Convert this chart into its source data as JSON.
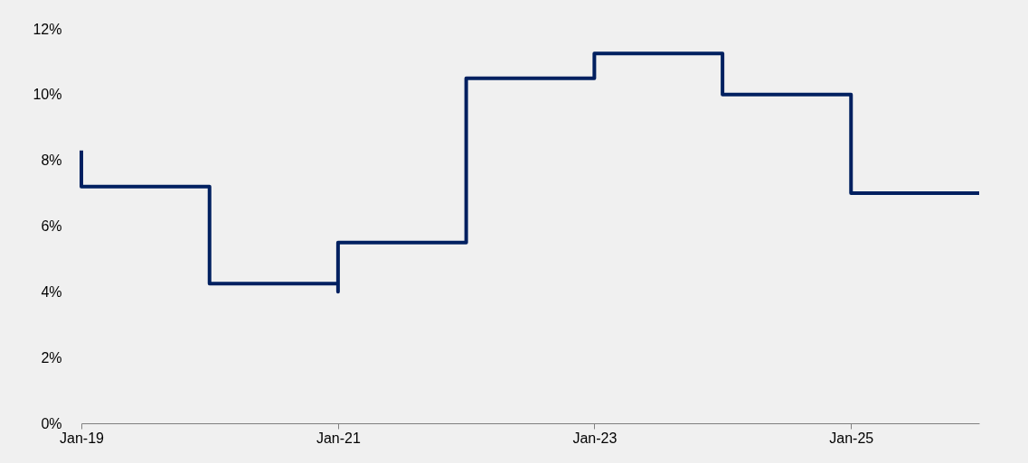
{
  "chart_data": {
    "type": "step",
    "x": [
      "2019-01",
      "2019-01",
      "2020-01",
      "2021-01",
      "2021-01",
      "2022-01",
      "2023-01",
      "2024-01",
      "2025-01",
      "2026-01"
    ],
    "series": [
      {
        "color": "#002060",
        "values": [
          8.3,
          7.2,
          4.25,
          4.0,
          5.5,
          10.5,
          11.25,
          10.0,
          7.0,
          7.0
        ]
      }
    ],
    "xlim": [
      "2019-01",
      "2026-01"
    ],
    "xticks": [
      {
        "value": "2019-01",
        "label": "Jan-19"
      },
      {
        "value": "2021-01",
        "label": "Jan-21"
      },
      {
        "value": "2023-01",
        "label": "Jan-23"
      },
      {
        "value": "2025-01",
        "label": "Jan-25"
      }
    ],
    "ylim": [
      0,
      12
    ],
    "yticks": [
      {
        "value": 0,
        "label": "0%"
      },
      {
        "value": 2,
        "label": "2%"
      },
      {
        "value": 4,
        "label": "4%"
      },
      {
        "value": 6,
        "label": "6%"
      },
      {
        "value": 8,
        "label": "8%"
      },
      {
        "value": 10,
        "label": "10%"
      },
      {
        "value": 12,
        "label": "12%"
      }
    ],
    "grid": false,
    "marker": "none",
    "line_style": "solid"
  }
}
